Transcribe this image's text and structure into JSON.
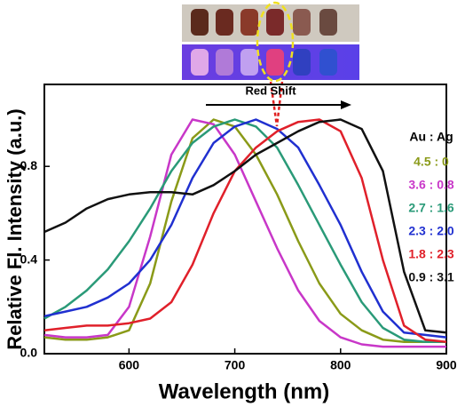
{
  "chart_data": {
    "type": "line",
    "x_label": "Wavelength (nm)",
    "y_label": "Relative Fl. Intensity (a.u.)",
    "annotation": "Red Shift",
    "legend_title": "Au : Ag",
    "x": [
      520,
      540,
      560,
      580,
      600,
      620,
      640,
      660,
      680,
      700,
      720,
      740,
      760,
      780,
      800,
      820,
      840,
      860,
      880,
      900
    ],
    "xlim": [
      520,
      900
    ],
    "xticks": [
      600,
      700,
      800,
      900
    ],
    "ylim": [
      0,
      1.15
    ],
    "yticks": [
      {
        "value": 0,
        "label": "0.0"
      },
      0.4,
      0.8
    ],
    "series": [
      {
        "name": "4.5 : 0",
        "color": "#8a9a18",
        "values": [
          0.07,
          0.06,
          0.06,
          0.07,
          0.1,
          0.3,
          0.65,
          0.92,
          1.0,
          0.97,
          0.85,
          0.68,
          0.48,
          0.3,
          0.17,
          0.1,
          0.06,
          0.05,
          0.05,
          0.05
        ]
      },
      {
        "name": "3.6 : 0.8",
        "color": "#c837c8",
        "values": [
          0.08,
          0.07,
          0.07,
          0.08,
          0.2,
          0.5,
          0.85,
          1.0,
          0.98,
          0.85,
          0.65,
          0.45,
          0.27,
          0.14,
          0.07,
          0.04,
          0.03,
          0.03,
          0.03,
          0.03
        ]
      },
      {
        "name": "2.7 : 1.6",
        "color": "#2a9a78",
        "values": [
          0.15,
          0.2,
          0.27,
          0.36,
          0.48,
          0.62,
          0.78,
          0.9,
          0.97,
          1.0,
          0.97,
          0.88,
          0.72,
          0.55,
          0.38,
          0.22,
          0.11,
          0.06,
          0.05,
          0.05
        ]
      },
      {
        "name": "2.3 : 2.0",
        "color": "#2030d0",
        "values": [
          0.16,
          0.18,
          0.2,
          0.24,
          0.3,
          0.4,
          0.55,
          0.75,
          0.9,
          0.97,
          1.0,
          0.96,
          0.88,
          0.72,
          0.55,
          0.35,
          0.18,
          0.09,
          0.08,
          0.07
        ]
      },
      {
        "name": "1.8 : 2.3",
        "color": "#e0202a",
        "values": [
          0.1,
          0.11,
          0.12,
          0.12,
          0.13,
          0.15,
          0.22,
          0.38,
          0.6,
          0.78,
          0.88,
          0.95,
          0.99,
          1.0,
          0.95,
          0.75,
          0.4,
          0.12,
          0.06,
          0.05
        ]
      },
      {
        "name": "0.9 : 3.1",
        "color": "#111111",
        "values": [
          0.52,
          0.56,
          0.62,
          0.66,
          0.68,
          0.69,
          0.69,
          0.68,
          0.72,
          0.78,
          0.85,
          0.9,
          0.95,
          0.99,
          1.0,
          0.96,
          0.78,
          0.35,
          0.1,
          0.09
        ]
      }
    ]
  }
}
